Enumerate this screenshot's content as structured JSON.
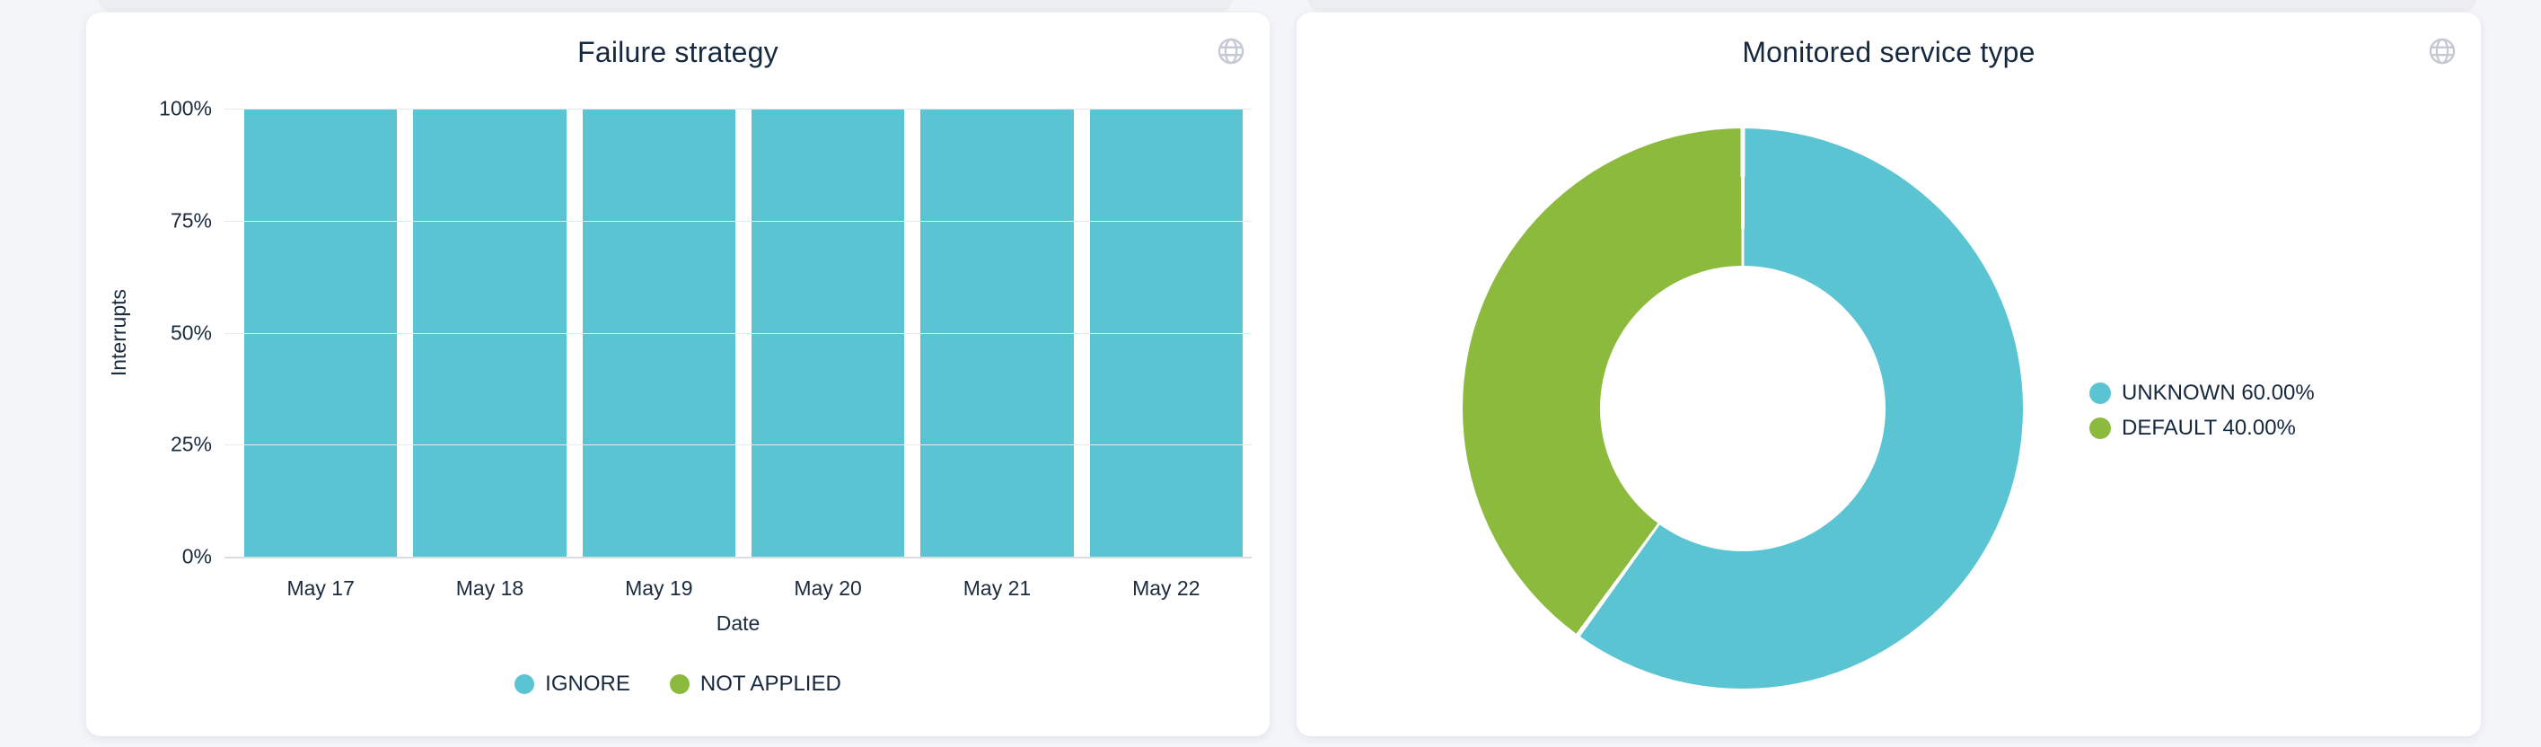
{
  "page": {
    "background": "#f3f5f9",
    "card_background": "#ffffff"
  },
  "cards": {
    "failure_strategy": {
      "action_icon": "globe-icon"
    },
    "monitored_service_type": {
      "action_icon": "globe-icon"
    }
  },
  "chart_data": [
    {
      "type": "bar",
      "title": "Failure strategy",
      "stacked": true,
      "categories": [
        "May 17",
        "May 18",
        "May 19",
        "May 20",
        "May 21",
        "May 22"
      ],
      "series": [
        {
          "name": "IGNORE",
          "color": "#5ac4d3",
          "values": [
            100,
            100,
            100,
            100,
            100,
            100
          ]
        },
        {
          "name": "NOT APPLIED",
          "color": "#8cba3d",
          "values": [
            0,
            0,
            0,
            0,
            0,
            0
          ]
        }
      ],
      "xlabel": "Date",
      "ylabel": "Interrupts",
      "ylim": [
        0,
        100
      ],
      "yticks": [
        {
          "label": "0%",
          "value": 0
        },
        {
          "label": "25%",
          "value": 25
        },
        {
          "label": "50%",
          "value": 50
        },
        {
          "label": "75%",
          "value": 75
        },
        {
          "label": "100%",
          "value": 100
        }
      ],
      "grid": true,
      "legend_position": "bottom"
    },
    {
      "type": "pie",
      "title": "Monitored service type",
      "donut": true,
      "inner_radius_ratio": 0.51,
      "start_angle_deg": 0,
      "direction": "clockwise",
      "slices": [
        {
          "name": "UNKNOWN",
          "value": 60.0,
          "legend_label": "UNKNOWN 60.00%",
          "color": "#5ac4d3"
        },
        {
          "name": "DEFAULT",
          "value": 40.0,
          "legend_label": "DEFAULT 40.00%",
          "color": "#8cba3d"
        }
      ],
      "legend_position": "right"
    }
  ]
}
